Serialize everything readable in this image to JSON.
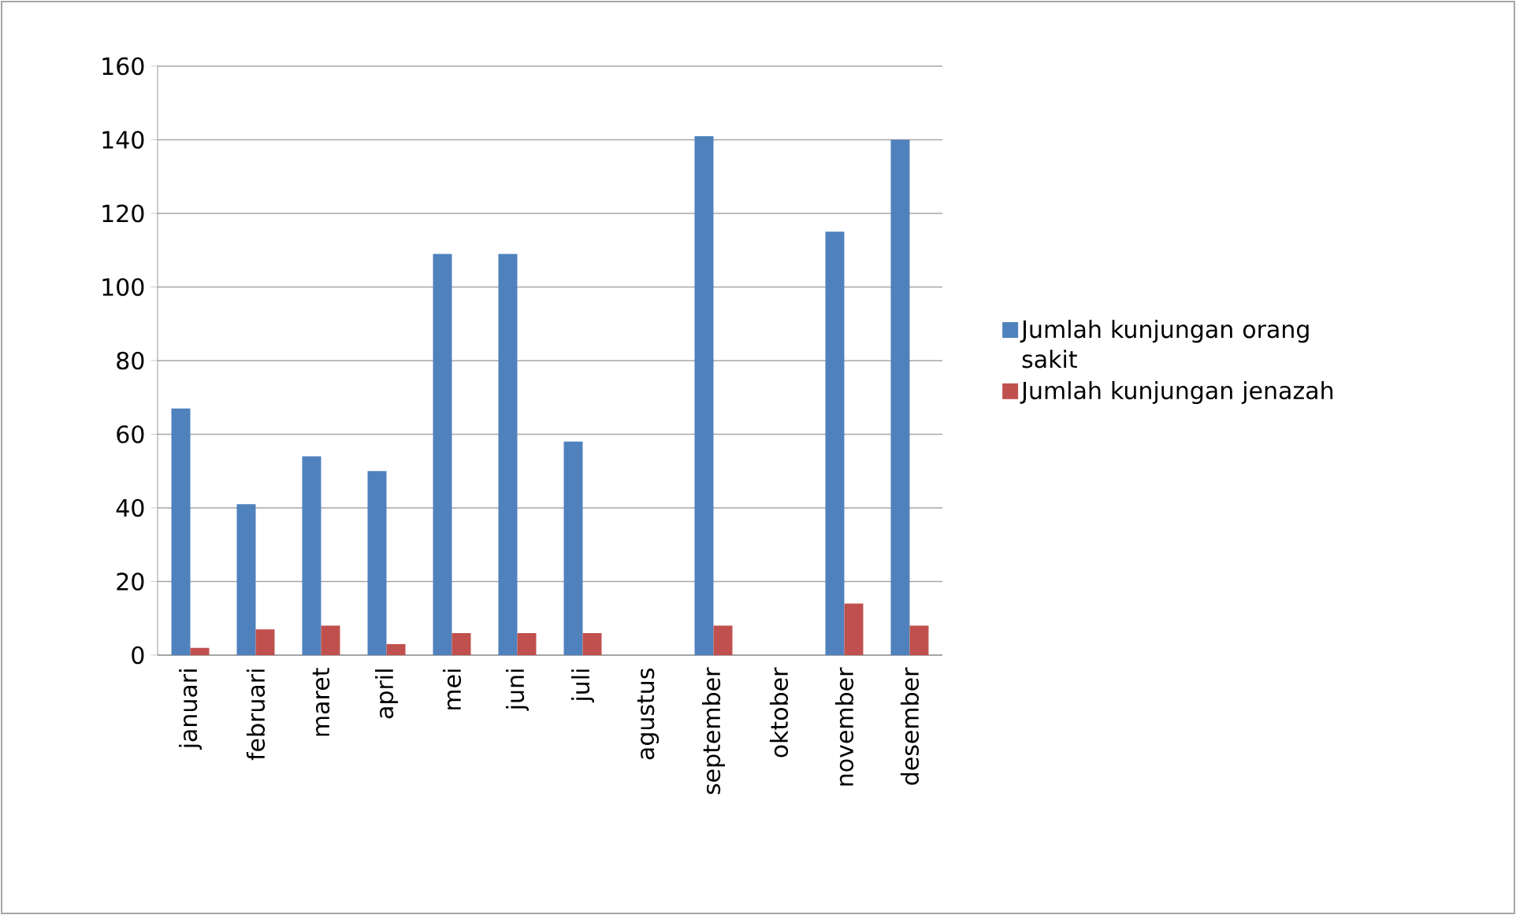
{
  "chart_data": {
    "type": "bar",
    "categories": [
      "januari",
      "februari",
      "maret",
      "april",
      "mei",
      "juni",
      "juli",
      "agustus",
      "september",
      "oktober",
      "november",
      "desember"
    ],
    "series": [
      {
        "name": "Jumlah kunjungan orang sakit",
        "color": "#4f81bd",
        "values": [
          67,
          41,
          54,
          50,
          109,
          109,
          58,
          null,
          141,
          null,
          115,
          140
        ]
      },
      {
        "name": "Jumlah kunjungan jenazah",
        "color": "#c0504d",
        "values": [
          2,
          7,
          8,
          3,
          6,
          6,
          6,
          null,
          8,
          null,
          14,
          8
        ]
      }
    ],
    "ylim": [
      0,
      160
    ],
    "yticks": [
      0,
      20,
      40,
      60,
      80,
      100,
      120,
      140,
      160
    ],
    "grid": "y",
    "legend": "right"
  }
}
